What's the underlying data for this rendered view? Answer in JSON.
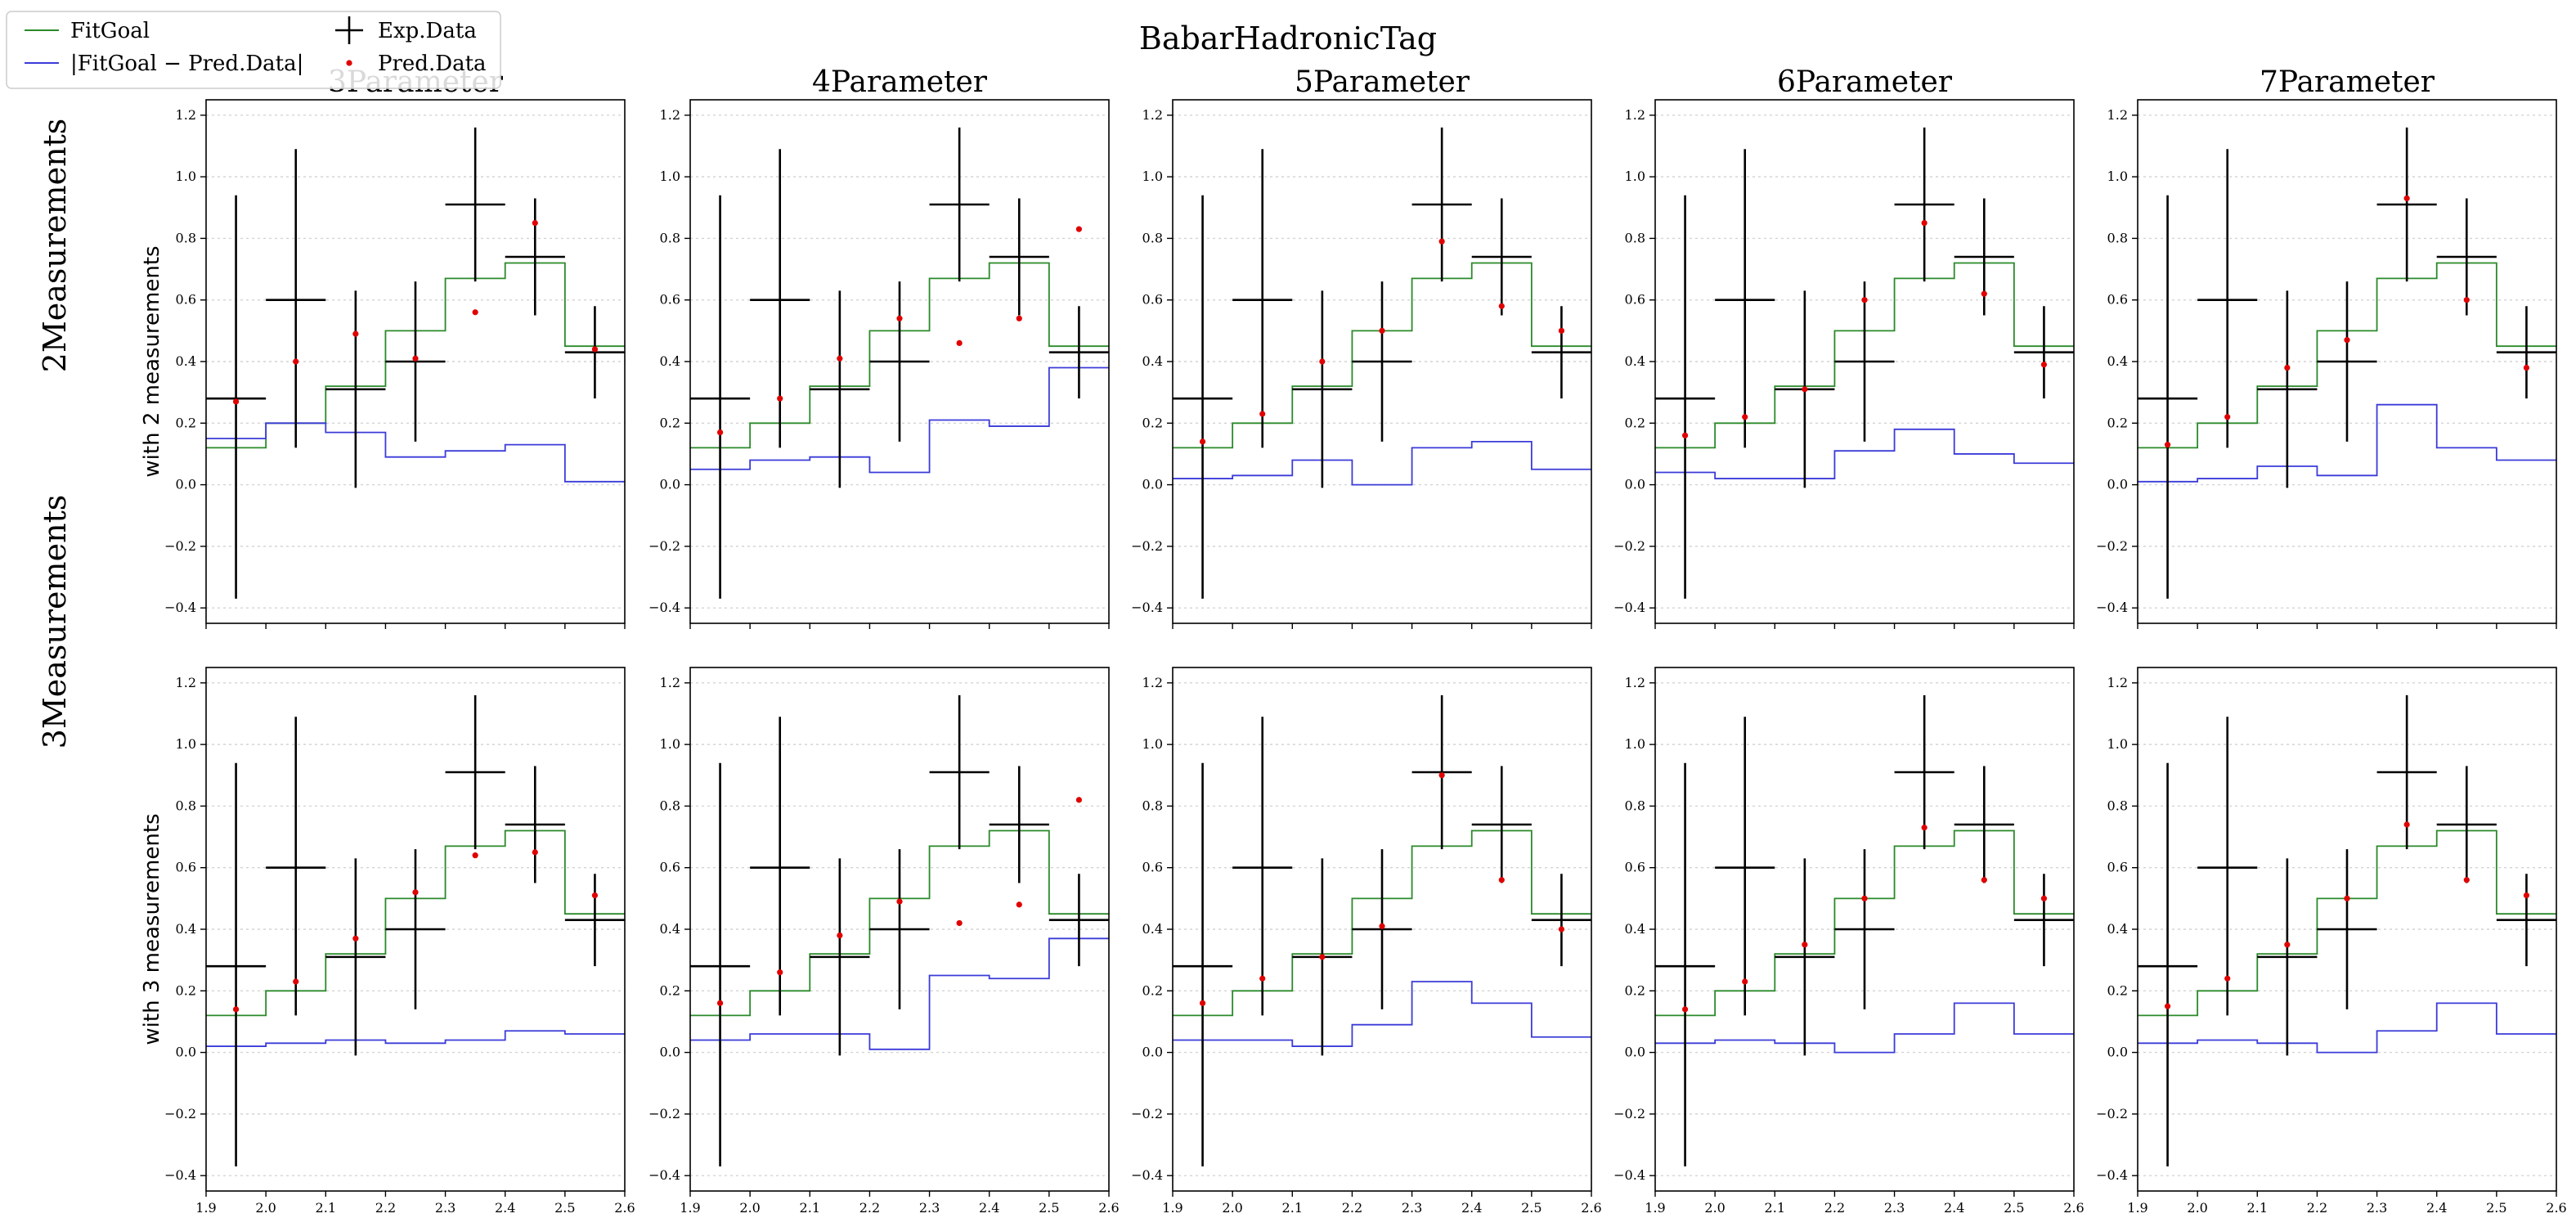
{
  "figure": {
    "suptitle": "BabarHadronicTag",
    "column_titles": [
      "3Parameter",
      "4Parameter",
      "5Parameter",
      "6Parameter",
      "7Parameter"
    ],
    "row_labels": [
      "2Measurements",
      "3Measurements"
    ],
    "row_ylabels": [
      "with 2 measurements",
      "with 3 measurements"
    ]
  },
  "legend": {
    "entries": [
      {
        "label": "FitGoal",
        "kind": "line",
        "color": "#2a8a2a"
      },
      {
        "label": "|FitGoal − Pred.Data|",
        "kind": "line",
        "color": "#3b3bd9"
      },
      {
        "label": "Exp.Data",
        "kind": "errorbar",
        "color": "#000000"
      },
      {
        "label": "Pred.Data",
        "kind": "marker",
        "color": "#e00000"
      }
    ]
  },
  "colors": {
    "fitgoal": "#2a8a2a",
    "absdiff": "#3b3bd9",
    "exp": "#000000",
    "pred": "#e00000",
    "grid": "#d4d4d4"
  },
  "chart_data": {
    "type": "step+errorbar grid",
    "xlim": [
      1.9,
      2.6
    ],
    "ylim": [
      -0.45,
      1.25
    ],
    "xticks": [
      "1.9",
      "2.0",
      "2.1",
      "2.2",
      "2.3",
      "2.4",
      "2.5",
      "2.6"
    ],
    "yticks": [
      "−0.4",
      "−0.2",
      "0.0",
      "0.2",
      "0.4",
      "0.6",
      "0.8",
      "1.0",
      "1.2"
    ],
    "grid": "horizontal",
    "bin_edges": [
      1.9,
      2.0,
      2.1,
      2.2,
      2.3,
      2.4,
      2.5,
      2.6
    ],
    "bin_centers": [
      1.95,
      2.05,
      2.15,
      2.25,
      2.35,
      2.45,
      2.55
    ],
    "fitgoal": [
      0.12,
      0.2,
      0.32,
      0.5,
      0.67,
      0.72,
      0.45
    ],
    "exp_data": {
      "y": [
        0.28,
        0.6,
        0.31,
        0.4,
        0.91,
        0.74,
        0.43
      ],
      "yerr_low": [
        0.65,
        0.48,
        0.32,
        0.26,
        0.25,
        0.19,
        0.15
      ],
      "yerr_high": [
        0.66,
        0.49,
        0.32,
        0.26,
        0.25,
        0.19,
        0.15
      ],
      "xerr": 0.05
    },
    "panels": [
      {
        "row": 0,
        "col": 0,
        "pred": [
          0.27,
          0.4,
          0.49,
          0.41,
          0.56,
          0.85,
          0.44
        ],
        "absdiff": [
          0.15,
          0.2,
          0.17,
          0.09,
          0.11,
          0.13,
          0.01
        ]
      },
      {
        "row": 0,
        "col": 1,
        "pred": [
          0.17,
          0.28,
          0.41,
          0.54,
          0.46,
          0.54,
          0.83
        ],
        "absdiff": [
          0.05,
          0.08,
          0.09,
          0.04,
          0.21,
          0.19,
          0.38
        ]
      },
      {
        "row": 0,
        "col": 2,
        "pred": [
          0.14,
          0.23,
          0.4,
          0.5,
          0.79,
          0.58,
          0.5
        ],
        "absdiff": [
          0.02,
          0.03,
          0.08,
          0.0,
          0.12,
          0.14,
          0.05
        ]
      },
      {
        "row": 0,
        "col": 3,
        "pred": [
          0.16,
          0.22,
          0.31,
          0.6,
          0.85,
          0.62,
          0.39
        ],
        "absdiff": [
          0.04,
          0.02,
          0.02,
          0.11,
          0.18,
          0.1,
          0.07
        ]
      },
      {
        "row": 0,
        "col": 4,
        "pred": [
          0.13,
          0.22,
          0.38,
          0.47,
          0.93,
          0.6,
          0.38
        ],
        "absdiff": [
          0.01,
          0.02,
          0.06,
          0.03,
          0.26,
          0.12,
          0.08
        ]
      },
      {
        "row": 1,
        "col": 0,
        "pred": [
          0.14,
          0.23,
          0.37,
          0.52,
          0.64,
          0.65,
          0.51
        ],
        "absdiff": [
          0.02,
          0.03,
          0.04,
          0.03,
          0.04,
          0.07,
          0.06
        ]
      },
      {
        "row": 1,
        "col": 1,
        "pred": [
          0.16,
          0.26,
          0.38,
          0.49,
          0.42,
          0.48,
          0.82
        ],
        "absdiff": [
          0.04,
          0.06,
          0.06,
          0.01,
          0.25,
          0.24,
          0.37
        ]
      },
      {
        "row": 1,
        "col": 2,
        "pred": [
          0.16,
          0.24,
          0.31,
          0.41,
          0.9,
          0.56,
          0.4
        ],
        "absdiff": [
          0.04,
          0.04,
          0.02,
          0.09,
          0.23,
          0.16,
          0.05
        ]
      },
      {
        "row": 1,
        "col": 3,
        "pred": [
          0.14,
          0.23,
          0.35,
          0.5,
          0.73,
          0.56,
          0.5
        ],
        "absdiff": [
          0.03,
          0.04,
          0.03,
          0.0,
          0.06,
          0.16,
          0.06
        ]
      },
      {
        "row": 1,
        "col": 4,
        "pred": [
          0.15,
          0.24,
          0.35,
          0.5,
          0.74,
          0.56,
          0.51
        ],
        "absdiff": [
          0.03,
          0.04,
          0.03,
          0.0,
          0.07,
          0.16,
          0.06
        ]
      }
    ]
  }
}
